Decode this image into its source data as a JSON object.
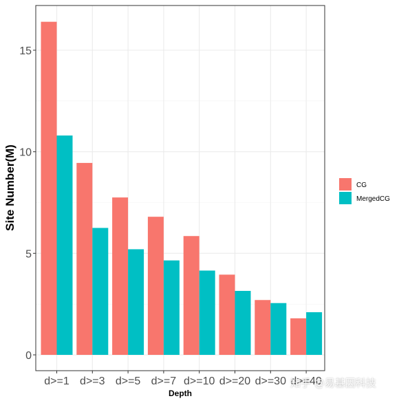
{
  "chart_data": {
    "type": "bar",
    "xlabel": "Depth",
    "ylabel": "Site Number(M)",
    "categories": [
      "d>=1",
      "d>=3",
      "d>=5",
      "d>=7",
      "d>=10",
      "d>=20",
      "d>=30",
      "d>=40"
    ],
    "series": [
      {
        "name": "CG",
        "color": "#F8766D",
        "values": [
          16.4,
          9.45,
          7.75,
          6.8,
          5.85,
          3.95,
          2.7,
          1.8
        ]
      },
      {
        "name": "MergedCG",
        "color": "#00BFC4",
        "values": [
          10.8,
          6.25,
          5.2,
          4.65,
          4.15,
          3.15,
          2.55,
          2.1
        ]
      }
    ],
    "ylim": [
      0,
      17
    ],
    "yticks": [
      0,
      5,
      10,
      15
    ],
    "grid": true,
    "legend": "right"
  },
  "watermark": "知乎 @易基因科技"
}
